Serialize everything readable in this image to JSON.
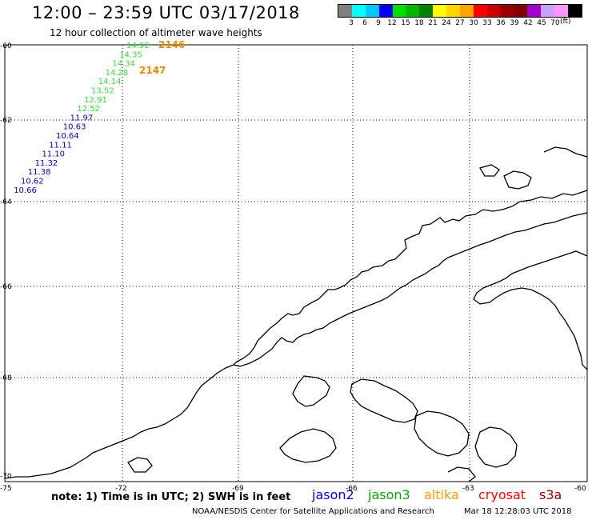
{
  "title": "12:00 – 23:59 UTC 03/17/2018",
  "subtitle": "12 hour collection of altimeter wave heights",
  "scale": {
    "colors": [
      "#808080",
      "#00ffff",
      "#00c8ff",
      "#0000ff",
      "#00e000",
      "#00b400",
      "#008000",
      "#ffff00",
      "#ffd700",
      "#ffa500",
      "#ff0000",
      "#c80000",
      "#960000",
      "#800000",
      "#a000c8",
      "#c8a0ff",
      "#ff96ff",
      "#000000"
    ],
    "labels": [
      "3",
      "6",
      "9",
      "12",
      "15",
      "18",
      "21",
      "24",
      "27",
      "30",
      "33",
      "36",
      "39",
      "42",
      "45",
      "70"
    ],
    "unit": "(ft)"
  },
  "axes": {
    "lat_labels": [
      "-60",
      "-62",
      "-64",
      "-66",
      "-68",
      "-70"
    ],
    "lon_labels": [
      "-75",
      "-72",
      "-69",
      "-66",
      "-63",
      "-60"
    ]
  },
  "tracks": [
    {
      "id": "2146",
      "color": "#ff9900",
      "label_color": "#e88a00"
    },
    {
      "id": "2147",
      "color": "#ff9900",
      "label_color": "#e88a00"
    }
  ],
  "observations": [
    {
      "value": "14.92",
      "color": "#33dd33"
    },
    {
      "value": "14.35",
      "color": "#33dd33"
    },
    {
      "value": "14.34",
      "color": "#33dd33"
    },
    {
      "value": "14.28",
      "color": "#33dd33"
    },
    {
      "value": "14.14",
      "color": "#33dd33"
    },
    {
      "value": "13.52",
      "color": "#33dd33"
    },
    {
      "value": "12.91",
      "color": "#33dd33"
    },
    {
      "value": "12.52",
      "color": "#33dd33"
    },
    {
      "value": "11.97",
      "color": "#0000cc"
    },
    {
      "value": "10.63",
      "color": "#0000cc"
    },
    {
      "value": "10.64",
      "color": "#0000cc"
    },
    {
      "value": "11.11",
      "color": "#0000cc"
    },
    {
      "value": "11.10",
      "color": "#0000cc"
    },
    {
      "value": "11.32",
      "color": "#0000cc"
    },
    {
      "value": "11.38",
      "color": "#0000cc"
    },
    {
      "value": "10.62",
      "color": "#0000cc"
    },
    {
      "value": "10.66",
      "color": "#0000cc"
    }
  ],
  "note": "note: 1) Time is in UTC; 2) SWH is in feet",
  "legend": [
    {
      "name": "jason2",
      "color": "#0000ff"
    },
    {
      "name": "jason3",
      "color": "#00aa00"
    },
    {
      "name": "altika",
      "color": "#ff9900"
    },
    {
      "name": "cryosat",
      "color": "#ff0000"
    },
    {
      "name": "s3a",
      "color": "#990000"
    }
  ],
  "credit": "NOAA/NESDIS Center for Satellite Applications and Research",
  "timestamp": "Mar 18 12:28:03 UTC 2018"
}
